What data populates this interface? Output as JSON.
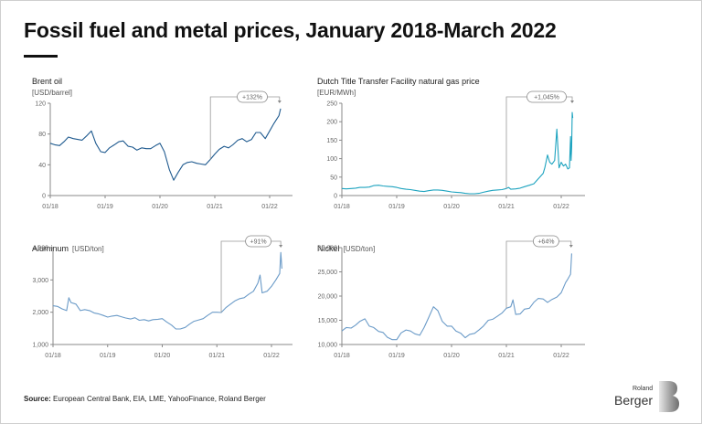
{
  "title": "Fossil fuel and metal prices, January 2018-March 2022",
  "source_label": "Source:",
  "source_text": "European Central Bank, EIA, LME, YahooFinance, Roland Berger",
  "logo": {
    "small": "Roland",
    "big": "Berger"
  },
  "chart_data": [
    {
      "id": "brent",
      "type": "line",
      "title": "Brent oil",
      "unit": "[USD/barrel]",
      "unit_inline": false,
      "color": "#1f5a8f",
      "ylim": [
        0,
        120
      ],
      "yticks": [
        0,
        40,
        80,
        120
      ],
      "ytick_labels": [
        "0",
        "40",
        "80",
        "120"
      ],
      "xlim": [
        2018.0,
        2022.35
      ],
      "xticks": [
        2018,
        2019,
        2020,
        2021,
        2022
      ],
      "xtick_labels": [
        "01/18",
        "01/19",
        "01/20",
        "01/21",
        "01/22"
      ],
      "annotation": {
        "label": "+132%",
        "from_x": 2020.92,
        "to_x": 2022.18
      },
      "x": [
        2018.0,
        2018.08,
        2018.17,
        2018.25,
        2018.33,
        2018.42,
        2018.5,
        2018.58,
        2018.67,
        2018.75,
        2018.83,
        2018.92,
        2019.0,
        2019.08,
        2019.17,
        2019.25,
        2019.33,
        2019.42,
        2019.5,
        2019.58,
        2019.67,
        2019.75,
        2019.83,
        2019.92,
        2020.0,
        2020.08,
        2020.17,
        2020.25,
        2020.33,
        2020.42,
        2020.5,
        2020.58,
        2020.67,
        2020.75,
        2020.83,
        2020.92,
        2021.0,
        2021.08,
        2021.17,
        2021.25,
        2021.33,
        2021.42,
        2021.5,
        2021.58,
        2021.67,
        2021.75,
        2021.83,
        2021.92,
        2022.0,
        2022.08,
        2022.17,
        2022.2
      ],
      "y": [
        68,
        66,
        65,
        70,
        76,
        74,
        73,
        72,
        78,
        84,
        68,
        57,
        56,
        62,
        66,
        70,
        71,
        64,
        63,
        59,
        62,
        61,
        61,
        65,
        68,
        57,
        34,
        20,
        30,
        40,
        43,
        44,
        42,
        41,
        40,
        47,
        54,
        60,
        64,
        62,
        66,
        72,
        74,
        70,
        73,
        82,
        82,
        74,
        84,
        94,
        104,
        113
      ]
    },
    {
      "id": "gas",
      "type": "line",
      "title": "Dutch Title Transfer Facility natural gas price",
      "unit": "[EUR/MWh]",
      "unit_inline": false,
      "color": "#1da3bf",
      "ylim": [
        0,
        250
      ],
      "yticks": [
        0,
        50,
        100,
        150,
        200,
        250
      ],
      "ytick_labels": [
        "0",
        "50",
        "100",
        "150",
        "200",
        "250"
      ],
      "xlim": [
        2018.0,
        2022.35
      ],
      "xticks": [
        2018,
        2019,
        2020,
        2021,
        2022
      ],
      "xtick_labels": [
        "01/18",
        "01/19",
        "01/20",
        "01/21",
        "01/22"
      ],
      "annotation": {
        "label": "+1,045%",
        "from_x": 2021.0,
        "to_x": 2022.2
      },
      "x": [
        2018.0,
        2018.08,
        2018.17,
        2018.25,
        2018.33,
        2018.42,
        2018.5,
        2018.58,
        2018.67,
        2018.75,
        2018.83,
        2018.92,
        2019.0,
        2019.08,
        2019.17,
        2019.25,
        2019.33,
        2019.42,
        2019.5,
        2019.58,
        2019.67,
        2019.75,
        2019.83,
        2019.92,
        2020.0,
        2020.08,
        2020.17,
        2020.25,
        2020.33,
        2020.42,
        2020.5,
        2020.58,
        2020.67,
        2020.75,
        2020.83,
        2020.92,
        2021.0,
        2021.04,
        2021.08,
        2021.17,
        2021.25,
        2021.33,
        2021.42,
        2021.5,
        2021.58,
        2021.67,
        2021.7,
        2021.75,
        2021.79,
        2021.83,
        2021.88,
        2021.92,
        2021.96,
        2022.0,
        2022.04,
        2022.08,
        2022.12,
        2022.15,
        2022.17,
        2022.18,
        2022.19,
        2022.2,
        2022.21
      ],
      "y": [
        19,
        18,
        19,
        20,
        22,
        22,
        23,
        27,
        28,
        26,
        25,
        24,
        22,
        19,
        17,
        16,
        14,
        12,
        11,
        13,
        15,
        15,
        14,
        12,
        10,
        9,
        8,
        6,
        5,
        5,
        6,
        9,
        12,
        14,
        15,
        16,
        19,
        22,
        17,
        18,
        20,
        24,
        28,
        32,
        45,
        60,
        75,
        110,
        90,
        85,
        95,
        180,
        75,
        90,
        80,
        85,
        72,
        75,
        160,
        95,
        130,
        225,
        210
      ]
    },
    {
      "id": "aluminum",
      "type": "line",
      "title": "Aluminum",
      "unit": "[USD/ton]",
      "unit_inline": true,
      "color": "#6b9bc8",
      "ylim": [
        1000,
        4000
      ],
      "yticks": [
        1000,
        2000,
        3000,
        4000
      ],
      "ytick_labels": [
        "1,000",
        "2,000",
        "3,000",
        "4,000"
      ],
      "xlim": [
        2018.0,
        2022.35
      ],
      "xticks": [
        2018,
        2019,
        2020,
        2021,
        2022
      ],
      "xtick_labels": [
        "01/18",
        "01/19",
        "01/20",
        "01/21",
        "01/22"
      ],
      "annotation": {
        "label": "+91%",
        "from_x": 2021.08,
        "to_x": 2022.17
      },
      "x": [
        2018.0,
        2018.08,
        2018.17,
        2018.25,
        2018.29,
        2018.33,
        2018.42,
        2018.5,
        2018.58,
        2018.67,
        2018.75,
        2018.83,
        2018.92,
        2019.0,
        2019.08,
        2019.17,
        2019.25,
        2019.33,
        2019.42,
        2019.5,
        2019.58,
        2019.67,
        2019.75,
        2019.83,
        2019.92,
        2020.0,
        2020.08,
        2020.17,
        2020.25,
        2020.33,
        2020.42,
        2020.5,
        2020.58,
        2020.67,
        2020.75,
        2020.83,
        2020.92,
        2021.0,
        2021.08,
        2021.17,
        2021.25,
        2021.33,
        2021.42,
        2021.5,
        2021.58,
        2021.67,
        2021.75,
        2021.79,
        2021.83,
        2021.92,
        2022.0,
        2022.08,
        2022.15,
        2022.17,
        2022.19
      ],
      "y": [
        2200,
        2180,
        2100,
        2050,
        2450,
        2300,
        2250,
        2050,
        2080,
        2050,
        1980,
        1950,
        1900,
        1850,
        1880,
        1900,
        1860,
        1820,
        1790,
        1830,
        1750,
        1770,
        1730,
        1770,
        1780,
        1800,
        1700,
        1600,
        1480,
        1480,
        1530,
        1630,
        1720,
        1760,
        1800,
        1900,
        2000,
        2000,
        1990,
        2150,
        2250,
        2350,
        2420,
        2450,
        2550,
        2650,
        2900,
        3150,
        2600,
        2650,
        2800,
        3000,
        3200,
        3850,
        3350
      ]
    },
    {
      "id": "nickel",
      "type": "line",
      "title": "Nickel",
      "unit": "[USD/ton]",
      "unit_inline": true,
      "color": "#6b9bc8",
      "ylim": [
        10000,
        30000
      ],
      "yticks": [
        10000,
        15000,
        20000,
        25000,
        30000
      ],
      "ytick_labels": [
        "10,000",
        "15,000",
        "20,000",
        "25,000",
        "30,000"
      ],
      "xlim": [
        2018.0,
        2022.35
      ],
      "xticks": [
        2018,
        2019,
        2020,
        2021,
        2022
      ],
      "xtick_labels": [
        "01/18",
        "01/19",
        "01/20",
        "01/21",
        "01/22"
      ],
      "annotation": {
        "label": "+64%",
        "from_x": 2021.0,
        "to_x": 2022.18
      },
      "x": [
        2018.0,
        2018.08,
        2018.17,
        2018.25,
        2018.33,
        2018.42,
        2018.5,
        2018.58,
        2018.67,
        2018.75,
        2018.83,
        2018.92,
        2019.0,
        2019.08,
        2019.17,
        2019.25,
        2019.33,
        2019.42,
        2019.5,
        2019.58,
        2019.67,
        2019.75,
        2019.83,
        2019.92,
        2020.0,
        2020.08,
        2020.17,
        2020.25,
        2020.33,
        2020.42,
        2020.5,
        2020.58,
        2020.67,
        2020.75,
        2020.83,
        2020.92,
        2021.0,
        2021.08,
        2021.12,
        2021.17,
        2021.25,
        2021.33,
        2021.42,
        2021.5,
        2021.58,
        2021.67,
        2021.75,
        2021.83,
        2021.92,
        2022.0,
        2022.08,
        2022.12,
        2022.17,
        2022.19
      ],
      "y": [
        12800,
        13500,
        13400,
        14000,
        14800,
        15300,
        13800,
        13500,
        12700,
        12500,
        11500,
        11000,
        11000,
        12400,
        13000,
        12800,
        12200,
        11900,
        13500,
        15500,
        17800,
        17000,
        14800,
        13800,
        13800,
        12800,
        12300,
        11400,
        12100,
        12300,
        13000,
        13800,
        15000,
        15200,
        15800,
        16500,
        17500,
        17800,
        19200,
        16200,
        16300,
        17300,
        17500,
        18700,
        19500,
        19400,
        18700,
        19300,
        19800,
        20700,
        22800,
        23500,
        24500,
        28800
      ]
    }
  ]
}
